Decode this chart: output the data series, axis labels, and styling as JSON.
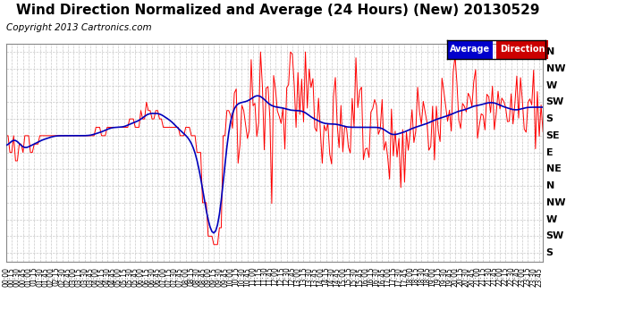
{
  "title": "Wind Direction Normalized and Average (24 Hours) (New) 20130529",
  "copyright": "Copyright 2013 Cartronics.com",
  "bg_color": "#ffffff",
  "plot_bg_color": "#ffffff",
  "grid_color": "#bbbbbb",
  "red_color": "#ff0000",
  "blue_color": "#0000bb",
  "ytick_labels": [
    "N",
    "NW",
    "W",
    "SW",
    "S",
    "SE",
    "E",
    "NE",
    "N",
    "NW",
    "W",
    "SW",
    "S"
  ],
  "ytick_values": [
    0,
    1,
    2,
    3,
    4,
    5,
    6,
    7,
    8,
    9,
    10,
    11,
    12
  ],
  "title_fontsize": 11,
  "copyright_fontsize": 7.5,
  "legend_avg_bg": "#0000cc",
  "legend_dir_bg": "#cc0000",
  "legend_fg": "#ffffff"
}
